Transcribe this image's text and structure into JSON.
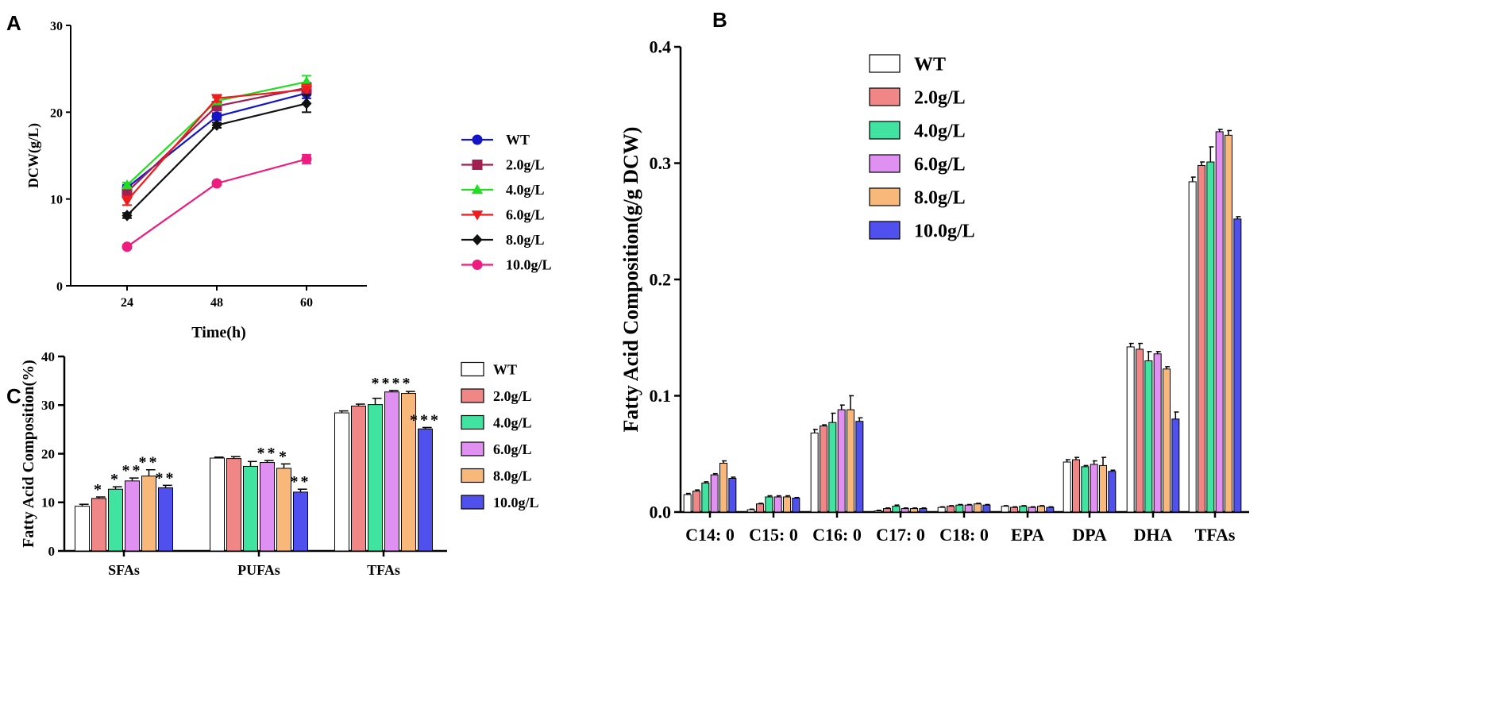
{
  "panel_letters": {
    "a": "A",
    "b": "B",
    "c": "C"
  },
  "colors": {
    "WT": "#1515c8",
    "2.0g/L": "#a01e50",
    "4.0g/L": "#22dd22",
    "6.0g/L": "#ee1c1c",
    "8.0g/L": "#111111",
    "10.0g/L": "#ee1c7e"
  },
  "bar_colors": {
    "WT": "#ffffff",
    "2.0g/L": "#f08686",
    "4.0g/L": "#40e3a0",
    "6.0g/L": "#e090f0",
    "8.0g/L": "#f8b87a",
    "10.0g/L": "#5050ee"
  },
  "chart_data": [
    {
      "id": "A",
      "type": "line",
      "title": "",
      "xlabel": "Time(h)",
      "ylabel": "DCW(g/L)",
      "x": [
        24,
        48,
        60
      ],
      "x_ticks": [
        "24",
        "48",
        "60"
      ],
      "ylim": [
        0,
        30
      ],
      "y_ticks": [
        "0",
        "10",
        "20",
        "30"
      ],
      "legend_position": "right",
      "series": [
        {
          "name": "WT",
          "marker": "circle",
          "values": [
            11.3,
            19.5,
            22.2
          ],
          "errors": [
            0.3,
            0.4,
            0.6
          ]
        },
        {
          "name": "2.0g/L",
          "marker": "square",
          "values": [
            10.8,
            20.7,
            22.8
          ],
          "errors": [
            0.3,
            0.5,
            0.6
          ]
        },
        {
          "name": "4.0g/L",
          "marker": "triangle-up",
          "values": [
            11.6,
            21.3,
            23.5
          ],
          "errors": [
            0.3,
            0.4,
            0.7
          ]
        },
        {
          "name": "6.0g/L",
          "marker": "triangle-down",
          "values": [
            9.8,
            21.6,
            22.6
          ],
          "errors": [
            0.5,
            0.4,
            0.6
          ]
        },
        {
          "name": "8.0g/L",
          "marker": "diamond",
          "values": [
            8.1,
            18.5,
            21.0
          ],
          "errors": [
            0.3,
            0.3,
            1.0
          ]
        },
        {
          "name": "10.0g/L",
          "marker": "circle",
          "values": [
            4.5,
            11.8,
            14.6
          ],
          "errors": [
            0.2,
            0.2,
            0.5
          ]
        }
      ]
    },
    {
      "id": "B",
      "type": "bar",
      "title": "",
      "xlabel": "",
      "ylabel": "Fatty Acid Composition(g/g DCW)",
      "categories": [
        "C14: 0",
        "C15: 0",
        "C16: 0",
        "C17: 0",
        "C18: 0",
        "EPA",
        "DPA",
        "DHA",
        "TFAs"
      ],
      "ylim": [
        0,
        0.4
      ],
      "y_ticks": [
        "0.0",
        "0.1",
        "0.2",
        "0.3",
        "0.4"
      ],
      "legend_position": "top-left",
      "series": [
        {
          "name": "WT",
          "values": [
            0.015,
            0.002,
            0.068,
            0.001,
            0.004,
            0.005,
            0.043,
            0.142,
            0.284
          ],
          "errors": [
            0.001,
            0.0005,
            0.003,
            0.0005,
            0.0005,
            0.0005,
            0.002,
            0.003,
            0.004
          ]
        },
        {
          "name": "2.0g/L",
          "values": [
            0.018,
            0.007,
            0.074,
            0.003,
            0.005,
            0.004,
            0.045,
            0.14,
            0.298
          ],
          "errors": [
            0.001,
            0.0005,
            0.001,
            0.0005,
            0.0005,
            0.0005,
            0.002,
            0.005,
            0.003
          ]
        },
        {
          "name": "4.0g/L",
          "values": [
            0.025,
            0.013,
            0.077,
            0.005,
            0.006,
            0.005,
            0.039,
            0.13,
            0.301
          ],
          "errors": [
            0.001,
            0.001,
            0.008,
            0.001,
            0.0005,
            0.0005,
            0.001,
            0.008,
            0.013
          ]
        },
        {
          "name": "6.0g/L",
          "values": [
            0.032,
            0.013,
            0.088,
            0.003,
            0.006,
            0.004,
            0.041,
            0.136,
            0.327
          ],
          "errors": [
            0.001,
            0.001,
            0.004,
            0.0005,
            0.0005,
            0.0005,
            0.003,
            0.002,
            0.002
          ]
        },
        {
          "name": "8.0g/L",
          "values": [
            0.042,
            0.013,
            0.088,
            0.003,
            0.007,
            0.005,
            0.04,
            0.123,
            0.324
          ],
          "errors": [
            0.002,
            0.001,
            0.012,
            0.0005,
            0.0005,
            0.0005,
            0.007,
            0.002,
            0.004
          ]
        },
        {
          "name": "10.0g/L",
          "values": [
            0.029,
            0.012,
            0.078,
            0.003,
            0.006,
            0.004,
            0.035,
            0.08,
            0.252
          ],
          "errors": [
            0.001,
            0.0005,
            0.003,
            0.0005,
            0.0005,
            0.0005,
            0.001,
            0.006,
            0.002
          ]
        }
      ]
    },
    {
      "id": "C",
      "type": "bar",
      "title": "",
      "xlabel": "",
      "ylabel": "Fatty Acid Composition(%)",
      "categories": [
        "SFAs",
        "PUFAs",
        "TFAs"
      ],
      "ylim": [
        0,
        40
      ],
      "y_ticks": [
        "0",
        "10",
        "20",
        "30",
        "40"
      ],
      "legend_position": "right",
      "series": [
        {
          "name": "WT",
          "values": [
            9.2,
            19.1,
            28.4
          ],
          "errors": [
            0.4,
            0.2,
            0.4
          ],
          "sig": [
            "",
            "",
            ""
          ]
        },
        {
          "name": "2.0g/L",
          "values": [
            10.8,
            19.0,
            29.8
          ],
          "errors": [
            0.3,
            0.4,
            0.4
          ],
          "sig": [
            "*",
            "",
            ""
          ]
        },
        {
          "name": "4.0g/L",
          "values": [
            12.7,
            17.4,
            30.1
          ],
          "errors": [
            0.5,
            1.0,
            1.3
          ],
          "sig": [
            "*",
            "",
            ""
          ]
        },
        {
          "name": "6.0g/L",
          "values": [
            14.4,
            18.2,
            32.7
          ],
          "errors": [
            0.6,
            0.4,
            0.3
          ],
          "sig": [
            "**",
            "**",
            "****"
          ]
        },
        {
          "name": "8.0g/L",
          "values": [
            15.4,
            17.0,
            32.4
          ],
          "errors": [
            1.3,
            0.9,
            0.4
          ],
          "sig": [
            "**",
            "*",
            ""
          ]
        },
        {
          "name": "10.0g/L",
          "values": [
            13.0,
            12.1,
            25.1
          ],
          "errors": [
            0.5,
            0.6,
            0.3
          ],
          "sig": [
            "**",
            "**",
            "***"
          ]
        }
      ]
    }
  ]
}
